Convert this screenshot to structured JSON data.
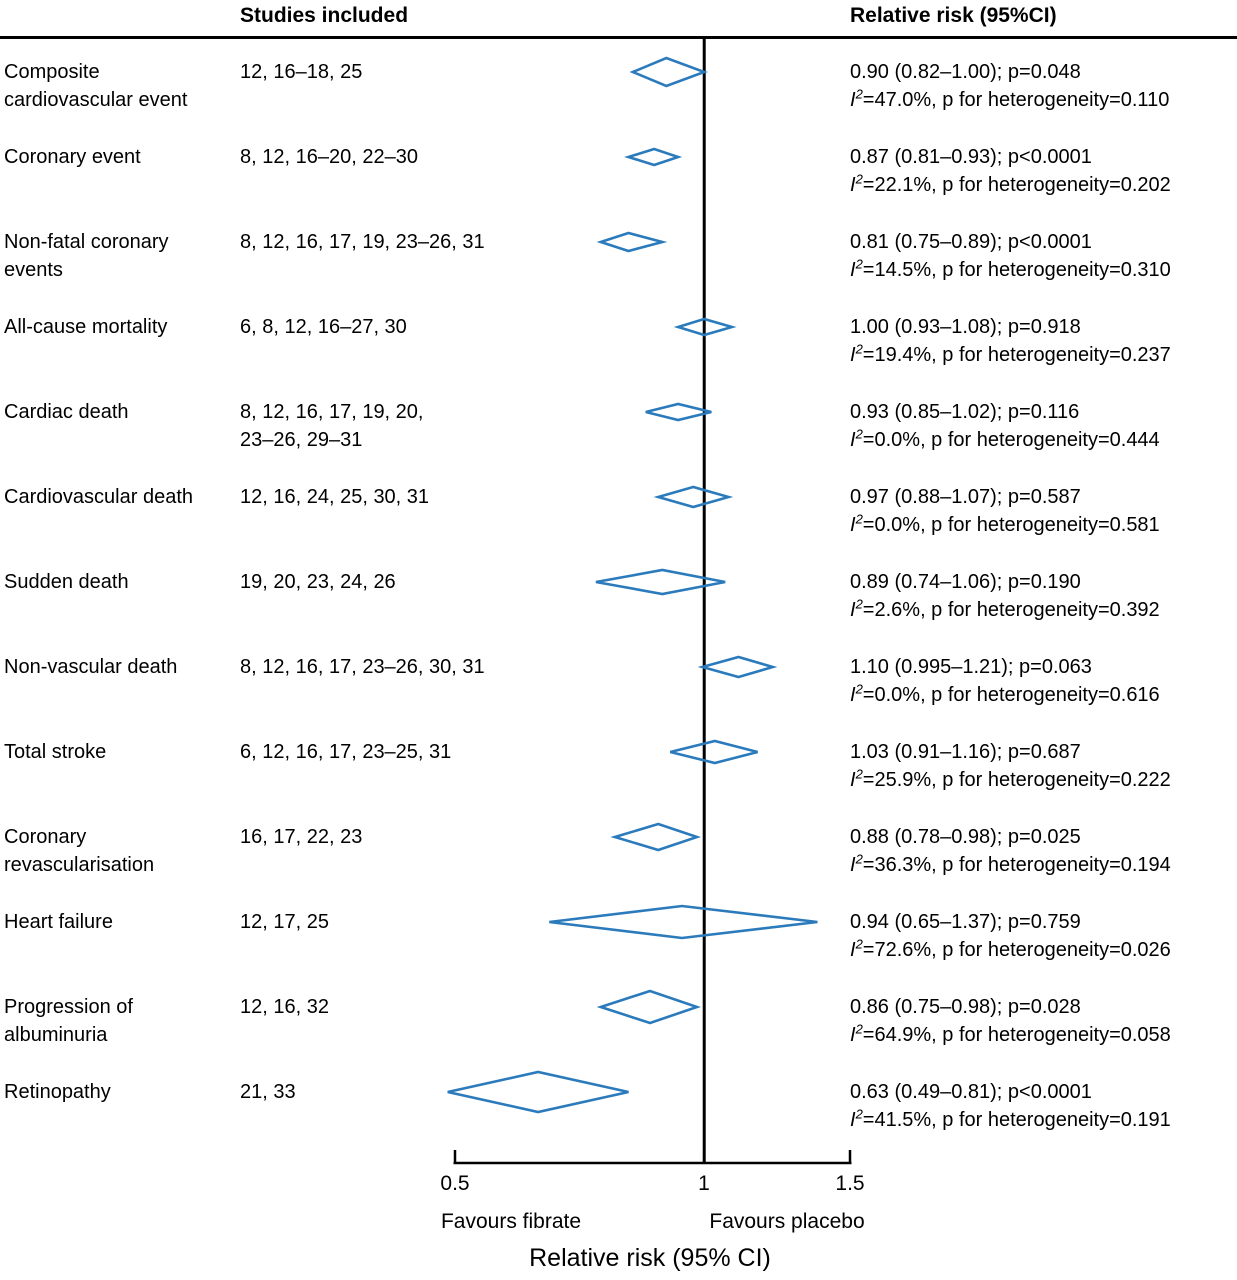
{
  "chart_data": {
    "type": "forest",
    "columns": {
      "studies": "Studies included",
      "rr": "Relative risk (95%CI)"
    },
    "i2_label": {
      "letter": "I",
      "sup": "2"
    },
    "axis": {
      "scale": "log",
      "min": 0.5,
      "max": 1.5,
      "reference_value": 1,
      "tick_values": [
        0.5,
        1,
        1.5
      ],
      "tick_labels": [
        "0.5",
        "1",
        "1.5"
      ],
      "left_label": "Favours fibrate",
      "right_label": "Favours placebo",
      "axis_title": "Relative risk (95% CI)"
    },
    "style": {
      "diamond_color": "#2b7bbc",
      "line_color": "#000000"
    },
    "rows": [
      {
        "outcome": "Composite\ncardiovascular event",
        "studies": "12, 16–18, 25",
        "rr": 0.9,
        "ci_low": 0.82,
        "ci_high": 1.0,
        "rr_text": "0.90 (0.82–1.00); p=0.048",
        "het_text": "=47.0%, p for heterogeneity=0.110",
        "diamond_height": 28
      },
      {
        "outcome": "Coronary event",
        "studies": "8, 12, 16–20, 22–30",
        "rr": 0.87,
        "ci_low": 0.81,
        "ci_high": 0.93,
        "rr_text": "0.87 (0.81–0.93); p<0.0001",
        "het_text": "=22.1%, p for heterogeneity=0.202",
        "diamond_height": 16
      },
      {
        "outcome": "Non-fatal coronary\nevents",
        "studies": "8, 12, 16, 17, 19, 23–26, 31",
        "rr": 0.81,
        "ci_low": 0.75,
        "ci_high": 0.89,
        "rr_text": "0.81 (0.75–0.89); p<0.0001",
        "het_text": "=14.5%, p for heterogeneity=0.310",
        "diamond_height": 18
      },
      {
        "outcome": "All-cause mortality",
        "studies": "6, 8, 12, 16–27, 30",
        "rr": 1.0,
        "ci_low": 0.93,
        "ci_high": 1.08,
        "rr_text": "1.00 (0.93–1.08); p=0.918",
        "het_text": "=19.4%, p for heterogeneity=0.237",
        "diamond_height": 16
      },
      {
        "outcome": "Cardiac death",
        "studies": "8, 12, 16, 17, 19, 20,\n23–26, 29–31",
        "rr": 0.93,
        "ci_low": 0.85,
        "ci_high": 1.02,
        "rr_text": "0.93 (0.85–1.02); p=0.116",
        "het_text": "=0.0%, p for heterogeneity=0.444",
        "diamond_height": 16
      },
      {
        "outcome": "Cardiovascular death",
        "studies": "12, 16, 24, 25, 30, 31",
        "rr": 0.97,
        "ci_low": 0.88,
        "ci_high": 1.07,
        "rr_text": "0.97 (0.88–1.07); p=0.587",
        "het_text": "=0.0%, p for heterogeneity=0.581",
        "diamond_height": 20
      },
      {
        "outcome": "Sudden death",
        "studies": "19, 20, 23, 24, 26",
        "rr": 0.89,
        "ci_low": 0.74,
        "ci_high": 1.06,
        "rr_text": "0.89 (0.74–1.06); p=0.190",
        "het_text": "=2.6%, p for heterogeneity=0.392",
        "diamond_height": 24
      },
      {
        "outcome": "Non-vascular death",
        "studies": "8, 12, 16, 17, 23–26, 30, 31",
        "rr": 1.1,
        "ci_low": 0.995,
        "ci_high": 1.21,
        "rr_text": "1.10 (0.995–1.21); p=0.063",
        "het_text": "=0.0%, p for heterogeneity=0.616",
        "diamond_height": 20
      },
      {
        "outcome": "Total stroke",
        "studies": "6, 12, 16, 17, 23–25, 31",
        "rr": 1.03,
        "ci_low": 0.91,
        "ci_high": 1.16,
        "rr_text": "1.03 (0.91–1.16); p=0.687",
        "het_text": "=25.9%, p for heterogeneity=0.222",
        "diamond_height": 22
      },
      {
        "outcome": "Coronary\nrevascularisation",
        "studies": "16, 17, 22, 23",
        "rr": 0.88,
        "ci_low": 0.78,
        "ci_high": 0.98,
        "rr_text": "0.88 (0.78–0.98); p=0.025",
        "het_text": "=36.3%, p for heterogeneity=0.194",
        "diamond_height": 26
      },
      {
        "outcome": "Heart failure",
        "studies": "12, 17, 25",
        "rr": 0.94,
        "ci_low": 0.65,
        "ci_high": 1.37,
        "rr_text": "0.94 (0.65–1.37); p=0.759",
        "het_text": "=72.6%, p for heterogeneity=0.026",
        "diamond_height": 32
      },
      {
        "outcome": "Progression of\nalbuminuria",
        "studies": "12, 16, 32",
        "rr": 0.86,
        "ci_low": 0.75,
        "ci_high": 0.98,
        "rr_text": "0.86 (0.75–0.98); p=0.028",
        "het_text": "=64.9%, p for heterogeneity=0.058",
        "diamond_height": 32
      },
      {
        "outcome": "Retinopathy",
        "studies": "21, 33",
        "rr": 0.63,
        "ci_low": 0.49,
        "ci_high": 0.81,
        "rr_text": "0.63 (0.49–0.81); p<0.0001",
        "het_text": "=41.5%, p for heterogeneity=0.191",
        "diamond_height": 40
      }
    ]
  }
}
